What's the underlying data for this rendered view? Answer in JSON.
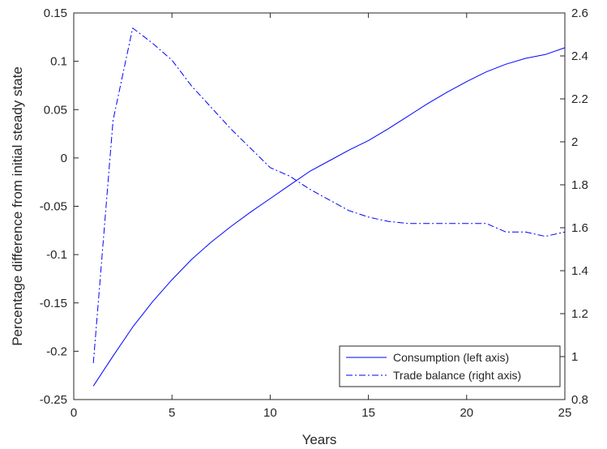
{
  "chart_data": {
    "type": "line",
    "title": "",
    "xlabel": "Years",
    "ylabel_left": "Percentage difference from initial steady state",
    "ylabel_right": "",
    "xlim": [
      0,
      25
    ],
    "ylim_left": [
      -0.25,
      0.15
    ],
    "ylim_right": [
      0.8,
      2.6
    ],
    "x_ticks": [
      0,
      5,
      10,
      15,
      20,
      25
    ],
    "x_tick_labels": [
      "0",
      "5",
      "10",
      "15",
      "20",
      "25"
    ],
    "y_left_ticks": [
      -0.25,
      -0.2,
      -0.15,
      -0.1,
      -0.05,
      0,
      0.05,
      0.1,
      0.15
    ],
    "y_left_tick_labels": [
      "-0.25",
      "-0.2",
      "-0.15",
      "-0.1",
      "-0.05",
      "0",
      "0.05",
      "0.1",
      "0.15"
    ],
    "y_right_ticks": [
      0.8,
      1,
      1.2,
      1.4,
      1.6,
      1.8,
      2,
      2.2,
      2.4,
      2.6
    ],
    "y_right_tick_labels": [
      "0.8",
      "1",
      "1.2",
      "1.4",
      "1.6",
      "1.8",
      "2",
      "2.2",
      "2.4",
      "2.6"
    ],
    "grid": false,
    "legend_position": "bottom-right",
    "series": [
      {
        "name": "Consumption (left axis)",
        "axis": "left",
        "style": "solid",
        "color": "#0000ff",
        "x": [
          1,
          2,
          3,
          4,
          5,
          6,
          7,
          8,
          9,
          10,
          11,
          12,
          13,
          14,
          15,
          16,
          17,
          18,
          19,
          20,
          21,
          22,
          23,
          24,
          25
        ],
        "values": [
          -0.236,
          -0.205,
          -0.175,
          -0.149,
          -0.126,
          -0.105,
          -0.087,
          -0.071,
          -0.056,
          -0.042,
          -0.028,
          -0.014,
          -0.003,
          0.008,
          0.018,
          0.03,
          0.043,
          0.056,
          0.068,
          0.079,
          0.089,
          0.097,
          0.103,
          0.107,
          0.114
        ]
      },
      {
        "name": "Trade balance (right axis)",
        "axis": "right",
        "style": "dashdot",
        "color": "#0000ff",
        "x": [
          1,
          2,
          3,
          4,
          5,
          6,
          7,
          8,
          9,
          10,
          11,
          12,
          13,
          14,
          15,
          16,
          17,
          18,
          19,
          20,
          21,
          22,
          23,
          24,
          25
        ],
        "values": [
          0.97,
          2.1,
          2.53,
          2.46,
          2.38,
          2.26,
          2.16,
          2.06,
          1.97,
          1.88,
          1.84,
          1.78,
          1.73,
          1.68,
          1.65,
          1.63,
          1.62,
          1.62,
          1.62,
          1.62,
          1.62,
          1.58,
          1.58,
          1.56,
          1.58
        ]
      }
    ]
  }
}
